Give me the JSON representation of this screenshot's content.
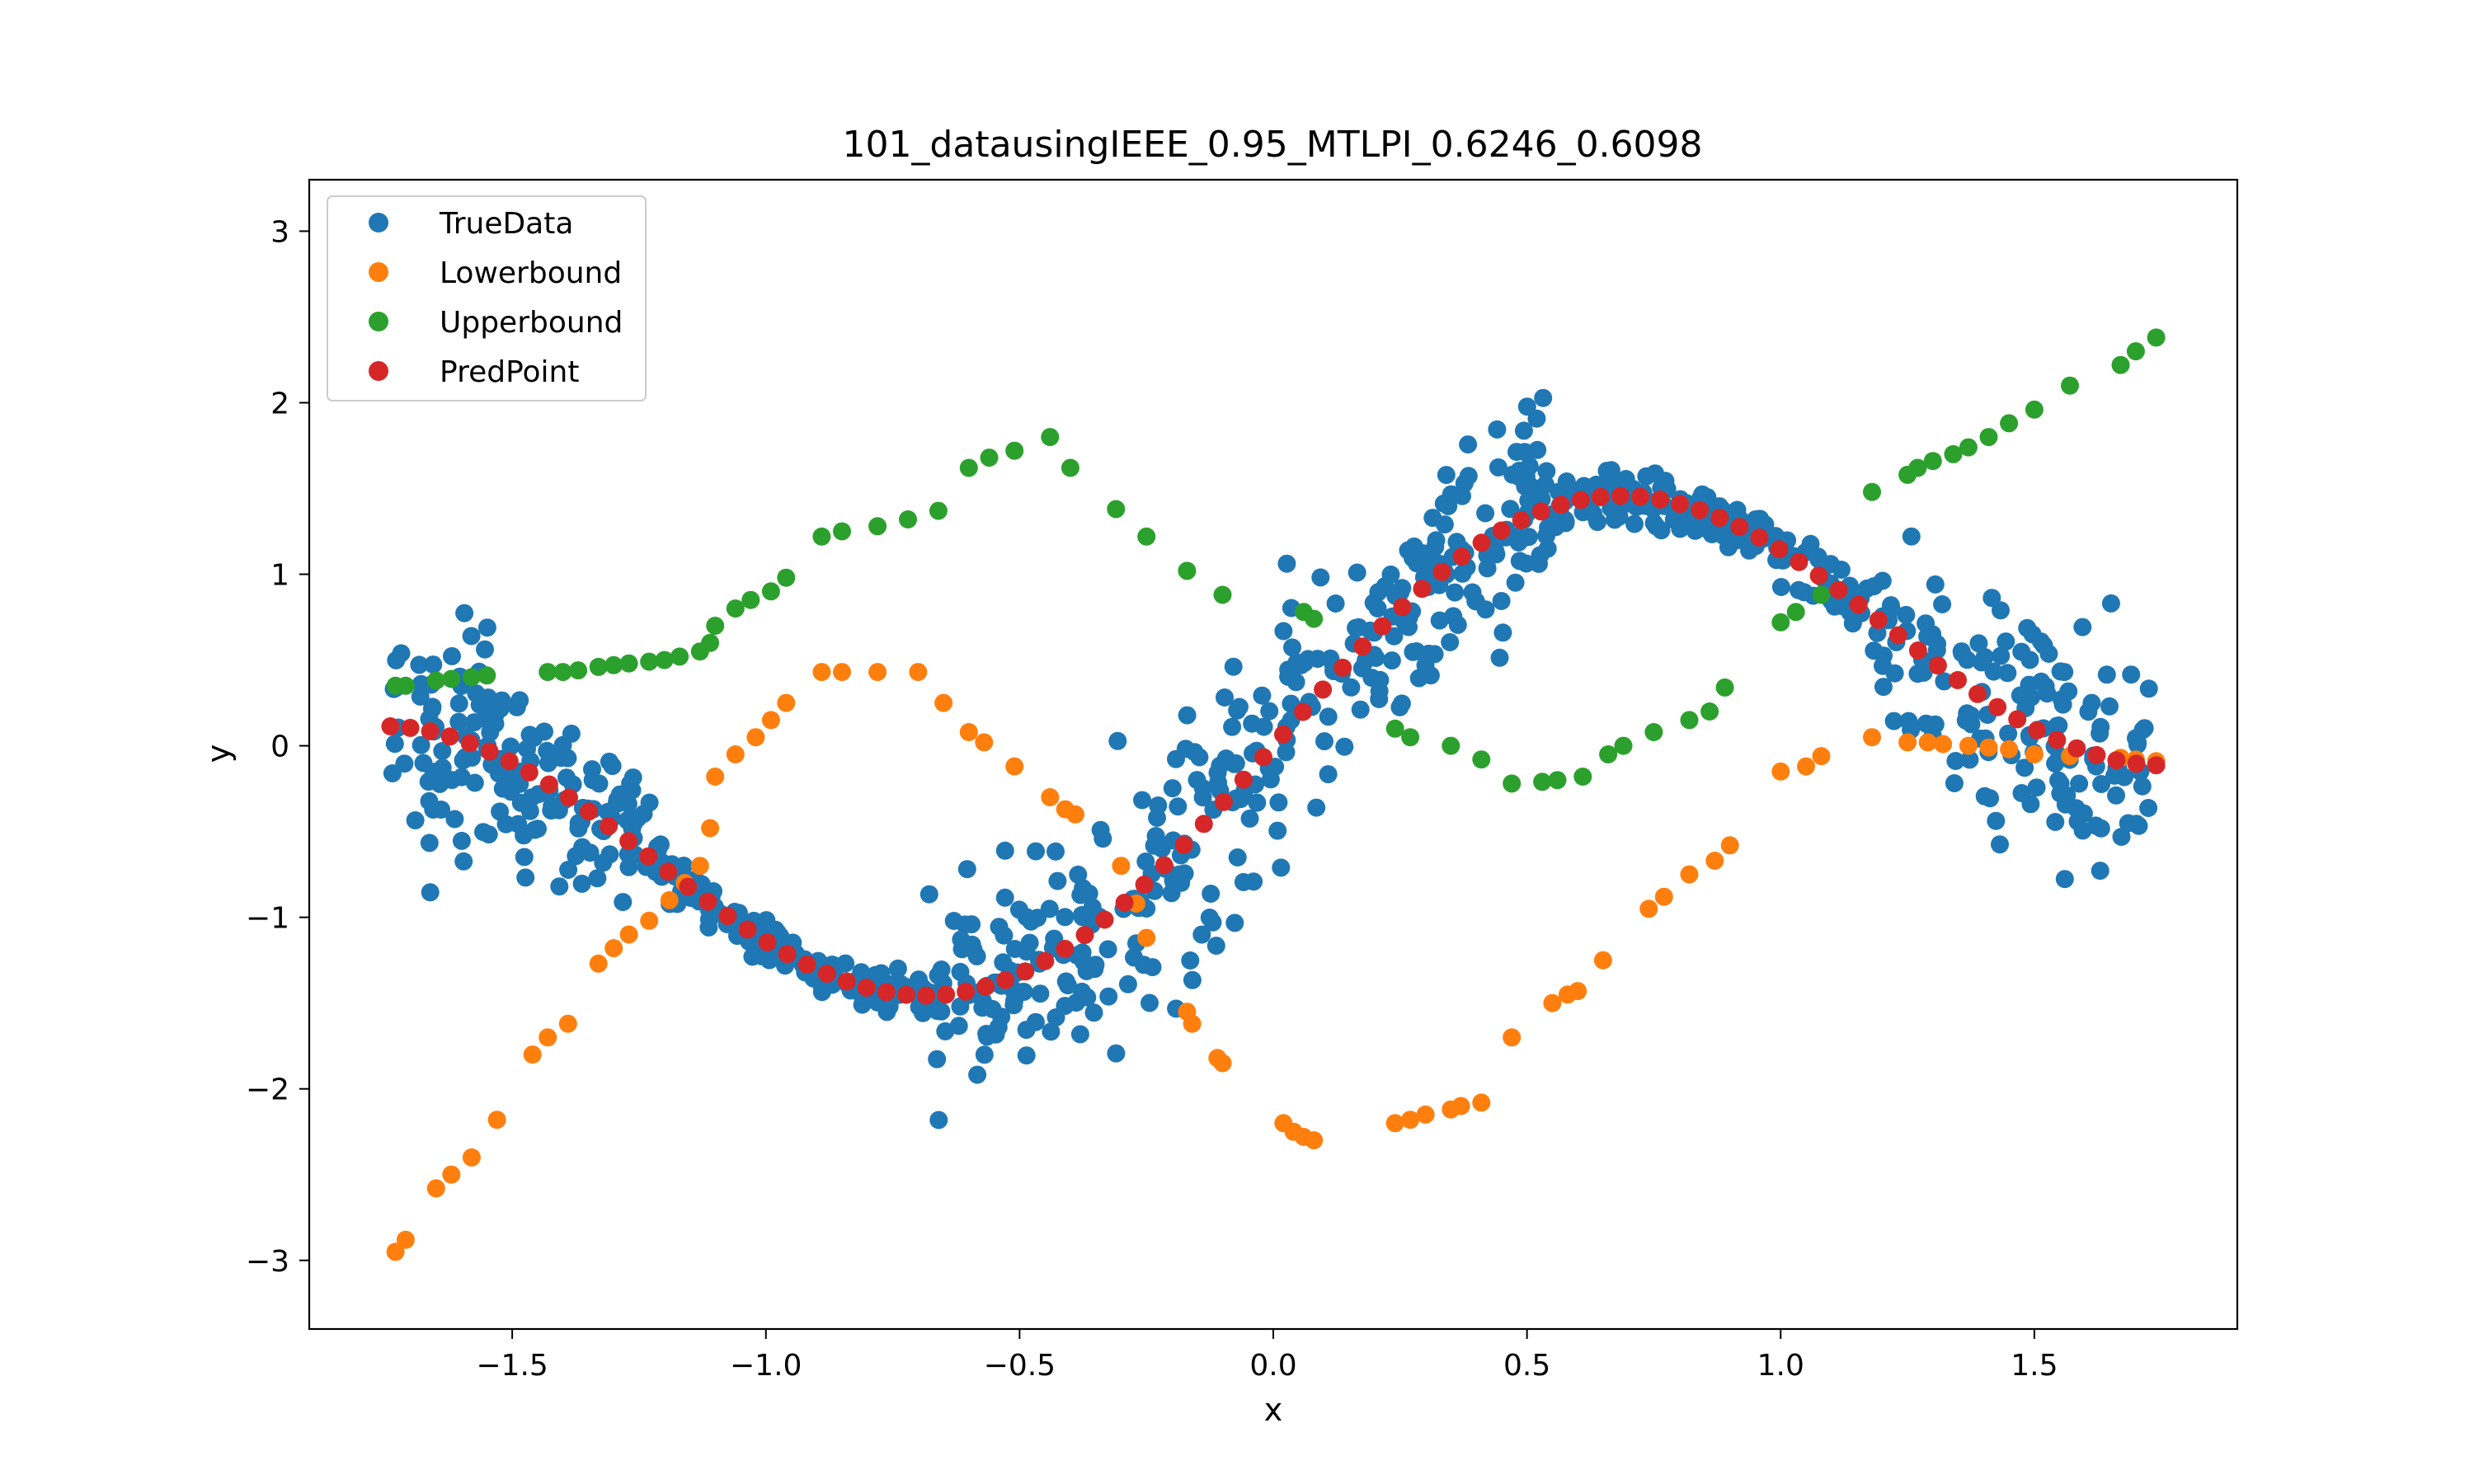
{
  "chart_data": {
    "type": "scatter",
    "title": "101_datausingIEEE_0.95_MTLPI_0.6246_0.6098",
    "xlabel": "x",
    "ylabel": "y",
    "xlim": [
      -1.9,
      1.9
    ],
    "ylim": [
      -3.4,
      3.3
    ],
    "xticks": [
      -1.5,
      -1.0,
      -0.5,
      0.0,
      0.5,
      1.0,
      1.5
    ],
    "xtick_labels": [
      "−1.5",
      "−1.0",
      "−0.5",
      "0.0",
      "0.5",
      "1.0",
      "1.5"
    ],
    "yticks": [
      -3,
      -2,
      -1,
      0,
      1,
      2,
      3
    ],
    "ytick_labels": [
      "−3",
      "−2",
      "−1",
      "0",
      "1",
      "2",
      "3"
    ],
    "grid": false,
    "legend": "upper-left",
    "series": [
      {
        "name": "TrueData",
        "color": "#1f77b4",
        "x_range": [
          -1.74,
          1.74
        ],
        "count": 1000,
        "trend": "sine_plus_linear",
        "noise": "heteroscedastic"
      },
      {
        "name": "Lowerbound",
        "color": "#ff7f0e",
        "x": [
          -1.73,
          -1.71,
          -1.65,
          -1.62,
          -1.58,
          -1.53,
          -1.46,
          -1.43,
          -1.39,
          -1.33,
          -1.3,
          -1.27,
          -1.23,
          -1.19,
          -1.16,
          -1.13,
          -1.11,
          -1.1,
          -1.06,
          -1.02,
          -0.99,
          -0.96,
          -0.89,
          -0.85,
          -0.78,
          -0.7,
          -0.65,
          -0.6,
          -0.57,
          -0.51,
          -0.44,
          -0.41,
          -0.39,
          -0.3,
          -0.27,
          -0.25,
          -0.17,
          -0.16,
          -0.11,
          -0.1,
          0.02,
          0.04,
          0.06,
          0.08,
          0.24,
          0.27,
          0.3,
          0.35,
          0.37,
          0.41,
          0.47,
          0.55,
          0.58,
          0.6,
          0.65,
          0.74,
          0.77,
          0.82,
          0.87,
          0.9,
          1.0,
          1.05,
          1.08,
          1.18,
          1.25,
          1.29,
          1.32,
          1.37,
          1.41,
          1.45,
          1.5,
          1.57,
          1.67,
          1.7,
          1.74
        ],
        "y": [
          -2.95,
          -2.88,
          -2.58,
          -2.5,
          -2.4,
          -2.18,
          -1.8,
          -1.7,
          -1.62,
          -1.27,
          -1.18,
          -1.1,
          -1.02,
          -0.9,
          -0.8,
          -0.7,
          -0.48,
          -0.18,
          -0.05,
          0.05,
          0.15,
          0.25,
          0.43,
          0.43,
          0.43,
          0.43,
          0.25,
          0.08,
          0.02,
          -0.12,
          -0.3,
          -0.37,
          -0.4,
          -0.7,
          -0.92,
          -1.12,
          -1.55,
          -1.62,
          -1.82,
          -1.85,
          -2.2,
          -2.25,
          -2.28,
          -2.3,
          -2.2,
          -2.18,
          -2.15,
          -2.12,
          -2.1,
          -2.08,
          -1.7,
          -1.5,
          -1.45,
          -1.43,
          -1.25,
          -0.95,
          -0.88,
          -0.75,
          -0.67,
          -0.58,
          -0.15,
          -0.12,
          -0.06,
          0.05,
          0.02,
          0.02,
          0.01,
          0.0,
          -0.01,
          -0.02,
          -0.05,
          -0.06,
          -0.07,
          -0.08,
          -0.09
        ]
      },
      {
        "name": "Upperbound",
        "color": "#2ca02c",
        "x": [
          -1.73,
          -1.71,
          -1.65,
          -1.62,
          -1.58,
          -1.55,
          -1.43,
          -1.4,
          -1.37,
          -1.33,
          -1.3,
          -1.27,
          -1.23,
          -1.2,
          -1.17,
          -1.13,
          -1.11,
          -1.1,
          -1.06,
          -1.03,
          -0.99,
          -0.96,
          -0.89,
          -0.85,
          -0.78,
          -0.72,
          -0.66,
          -0.6,
          -0.56,
          -0.51,
          -0.44,
          -0.4,
          -0.31,
          -0.25,
          -0.17,
          -0.1,
          0.06,
          0.08,
          0.24,
          0.27,
          0.35,
          0.41,
          0.47,
          0.53,
          0.56,
          0.61,
          0.66,
          0.69,
          0.75,
          0.82,
          0.86,
          0.89,
          1.0,
          1.03,
          1.08,
          1.18,
          1.25,
          1.27,
          1.3,
          1.34,
          1.37,
          1.41,
          1.45,
          1.5,
          1.57,
          1.67,
          1.7,
          1.74
        ],
        "y": [
          0.35,
          0.35,
          0.38,
          0.39,
          0.4,
          0.41,
          0.43,
          0.43,
          0.44,
          0.46,
          0.47,
          0.48,
          0.49,
          0.5,
          0.52,
          0.55,
          0.6,
          0.7,
          0.8,
          0.85,
          0.9,
          0.98,
          1.22,
          1.25,
          1.28,
          1.32,
          1.37,
          1.62,
          1.68,
          1.72,
          1.8,
          1.62,
          1.38,
          1.22,
          1.02,
          0.88,
          0.78,
          0.74,
          0.1,
          0.05,
          0.0,
          -0.08,
          -0.22,
          -0.21,
          -0.2,
          -0.18,
          -0.05,
          0.0,
          0.08,
          0.15,
          0.2,
          0.34,
          0.72,
          0.78,
          0.88,
          1.48,
          1.58,
          1.62,
          1.66,
          1.7,
          1.74,
          1.8,
          1.88,
          1.96,
          2.1,
          2.22,
          2.3,
          2.38
        ]
      },
      {
        "name": "PredPoint",
        "color": "#d62728",
        "x_range": [
          -1.74,
          1.74
        ],
        "count": 90
      }
    ]
  }
}
